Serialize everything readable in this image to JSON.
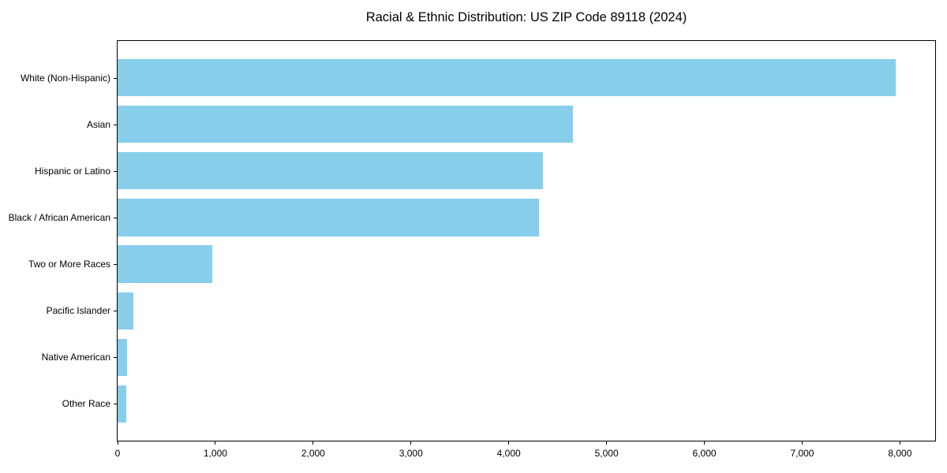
{
  "chart_data": {
    "type": "bar",
    "orientation": "horizontal",
    "title": "Racial & Ethnic Distribution: US ZIP Code 89118 (2024)",
    "categories": [
      "White (Non-Hispanic)",
      "Asian",
      "Hispanic or Latino",
      "Black / African American",
      "Two or More Races",
      "Pacific Islander",
      "Native American",
      "Other Race"
    ],
    "values": [
      7960,
      4655,
      4350,
      4310,
      970,
      160,
      100,
      85
    ],
    "xlabel": "",
    "ylabel": "",
    "xlim": [
      0,
      8360
    ],
    "xticks": [
      0,
      1000,
      2000,
      3000,
      4000,
      5000,
      6000,
      7000,
      8000
    ],
    "xtick_labels": [
      "0",
      "1,000",
      "2,000",
      "3,000",
      "4,000",
      "5,000",
      "6,000",
      "7,000",
      "8,000"
    ],
    "bar_color": "#87CEEB",
    "frame_color": "#000000",
    "background_color": "#ffffff",
    "grid": false,
    "legend": "none"
  }
}
